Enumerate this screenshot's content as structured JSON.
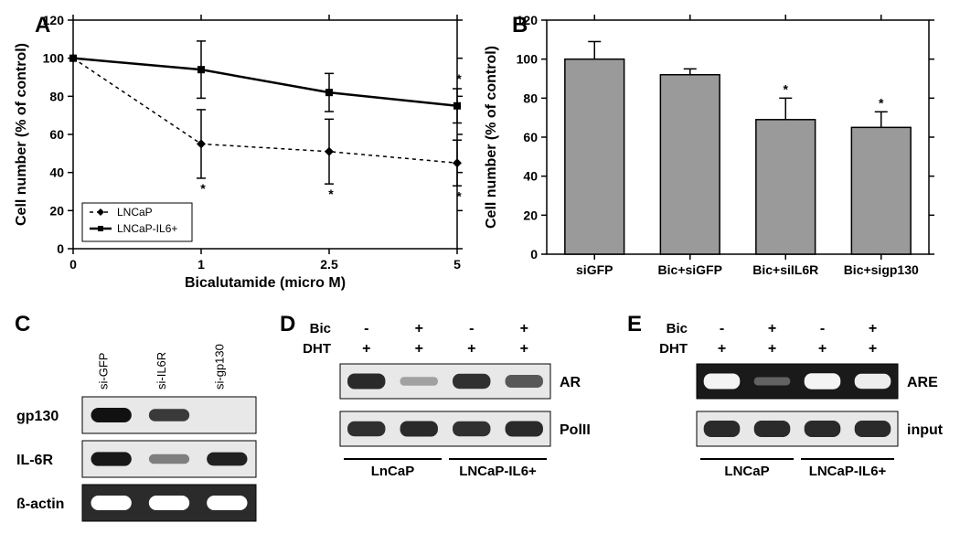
{
  "panelA": {
    "label": "A",
    "type": "line",
    "xlabel": "Bicalutamide (micro M)",
    "ylabel": "Cell number (% of control)",
    "x_categories": [
      "0",
      "1",
      "2.5",
      "5"
    ],
    "ylim": [
      0,
      120
    ],
    "ytick_step": 20,
    "background_color": "#ffffff",
    "series": [
      {
        "name": "LNCaP",
        "marker": "diamond",
        "dash": "4,4",
        "line_width": 1.5,
        "values": [
          100,
          55,
          51,
          45
        ],
        "err": [
          0,
          18,
          17,
          12
        ],
        "stars": [
          false,
          true,
          true,
          true
        ]
      },
      {
        "name": "LNCaP-IL6+",
        "marker": "square",
        "dash": "none",
        "line_width": 2.5,
        "values": [
          100,
          94,
          82,
          75
        ],
        "err": [
          0,
          15,
          10,
          9
        ],
        "stars": [
          false,
          false,
          false,
          true
        ]
      }
    ],
    "legend": {
      "items": [
        "LNCaP",
        "LNCaP-IL6+"
      ]
    }
  },
  "panelB": {
    "label": "B",
    "type": "bar",
    "ylabel": "Cell number (% of control)",
    "categories": [
      "siGFP",
      "Bic+siGFP",
      "Bic+siIL6R",
      "Bic+sigp130"
    ],
    "values": [
      100,
      92,
      69,
      65
    ],
    "err": [
      9,
      3,
      11,
      8
    ],
    "stars": [
      false,
      false,
      true,
      true
    ],
    "ylim": [
      0,
      120
    ],
    "ytick_step": 20,
    "bar_fill": "#9a9a9a",
    "bar_stroke": "#000000",
    "background_color": "#ffffff"
  },
  "panelC": {
    "label": "C",
    "columns": [
      "si-GFP",
      "si-IL6R",
      "si-gp130"
    ],
    "rows": [
      "gp130",
      "IL-6R",
      "ß-actin"
    ],
    "gel_bg": "#e8e8e8",
    "band_color": "#111111",
    "band_color_light": "#ffffff",
    "bands": [
      [
        1.0,
        0.7,
        0.0
      ],
      [
        0.9,
        0.3,
        0.85
      ],
      [
        1.0,
        1.0,
        1.0
      ]
    ],
    "row_styles": [
      "dark",
      "dark",
      "light"
    ]
  },
  "panelD": {
    "label": "D",
    "treatments": {
      "Bic": [
        "-",
        "+",
        "-",
        "+"
      ],
      "DHT": [
        "+",
        "+",
        "+",
        "+"
      ]
    },
    "treatment_labels": [
      "Bic",
      "DHT"
    ],
    "rows": [
      "AR",
      "PolII"
    ],
    "groups": [
      "LnCaP",
      "LNCaP-IL6+"
    ],
    "gel_bg": "#e8e8e8",
    "band_color": "#2a2a2a",
    "bands": [
      [
        0.9,
        0.15,
        0.85,
        0.6
      ],
      [
        0.85,
        0.9,
        0.85,
        0.9
      ]
    ]
  },
  "panelE": {
    "label": "E",
    "treatments": {
      "Bic": [
        "-",
        "+",
        "-",
        "+"
      ],
      "DHT": [
        "+",
        "+",
        "+",
        "+"
      ]
    },
    "treatment_labels": [
      "Bic",
      "DHT"
    ],
    "rows": [
      "ARE",
      "input"
    ],
    "groups": [
      "LNCaP",
      "LNCaP-IL6+"
    ],
    "gel_bg_dark": "#1a1a1a",
    "band_color_on_dark": "#f4f4f4",
    "band_color_dark": "#2a2a2a",
    "gel_bg_light": "#e8e8e8",
    "bands": [
      [
        0.9,
        0.1,
        0.95,
        0.85
      ],
      [
        1.0,
        1.0,
        1.0,
        1.0
      ]
    ],
    "row_bg": [
      "dark",
      "light"
    ]
  }
}
